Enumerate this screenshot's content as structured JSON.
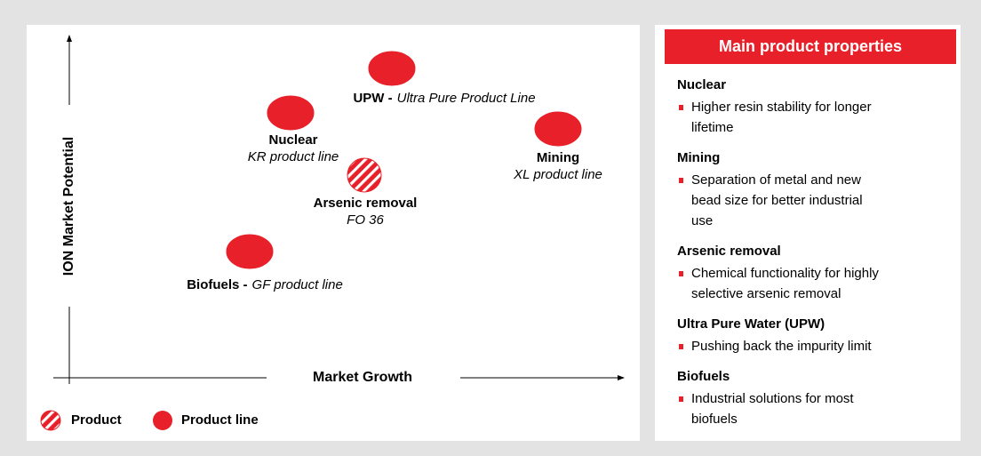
{
  "matrix": {
    "y_axis_label": "ION Market Potential",
    "x_axis_label": "Market Growth",
    "nodes": [
      {
        "title": "UPW -",
        "subtitle": "Ultra Pure Product Line",
        "kind": "product line"
      },
      {
        "title": "Nuclear",
        "subtitle": "KR product line",
        "kind": "product line"
      },
      {
        "title": "Arsenic removal",
        "subtitle": "FO 36",
        "kind": "product"
      },
      {
        "title": "Mining",
        "subtitle": "XL product line",
        "kind": "product line"
      },
      {
        "title": "Biofuels -",
        "subtitle": "GF product line",
        "kind": "product line"
      }
    ],
    "legend": [
      "Product",
      "Product line"
    ]
  },
  "properties": {
    "title": "Main product properties",
    "sections": [
      {
        "heading": "Nuclear",
        "bullets": [
          [
            "Higher resin stability for longer",
            "lifetime"
          ]
        ]
      },
      {
        "heading": "Mining",
        "bullets": [
          [
            "Separation of metal and new",
            "bead size for better industrial",
            "use"
          ]
        ]
      },
      {
        "heading": "Arsenic removal",
        "bullets": [
          [
            "Chemical functionality for highly",
            "selective arsenic removal"
          ]
        ]
      },
      {
        "heading": "Ultra Pure Water (UPW)",
        "bullets": [
          [
            "Pushing back the impurity limit"
          ]
        ]
      },
      {
        "heading": "Biofuels",
        "bullets": [
          [
            "Industrial solutions for most",
            "biofuels"
          ]
        ]
      }
    ]
  }
}
